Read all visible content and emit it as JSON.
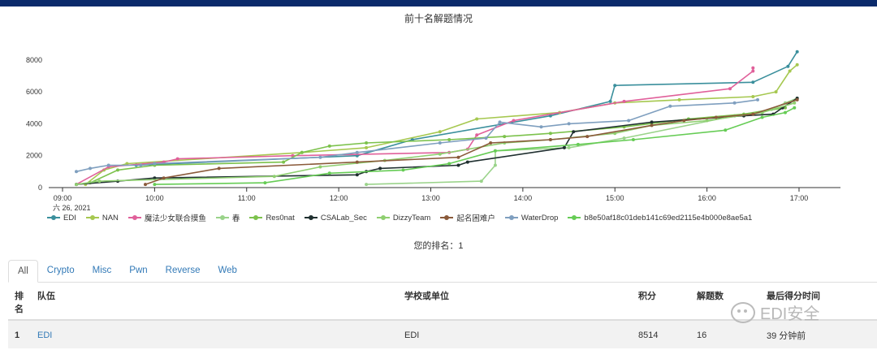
{
  "chart_data": {
    "type": "line",
    "title": "前十名解题情况",
    "xlabel": "",
    "ylabel": "",
    "x_tick_labels": [
      "09:00",
      "10:00",
      "11:00",
      "12:00",
      "13:00",
      "14:00",
      "15:00",
      "16:00",
      "17:00"
    ],
    "x_tick_sublabel": "六 26, 2021",
    "xlim": [
      8.85,
      17.45
    ],
    "y_tick_labels": [
      "0",
      "2000",
      "4000",
      "6000",
      "8000"
    ],
    "ylim": [
      0,
      8600
    ],
    "grid": false,
    "legend_position": "bottom",
    "series": [
      {
        "name": "EDI",
        "color": "#3a8f9c",
        "points": [
          [
            9.8,
            1400
          ],
          [
            12.2,
            2000
          ],
          [
            12.8,
            3000
          ],
          [
            14.3,
            4500
          ],
          [
            14.95,
            5400
          ],
          [
            15.0,
            6400
          ],
          [
            16.5,
            6600
          ],
          [
            16.88,
            7600
          ],
          [
            16.98,
            8514
          ]
        ]
      },
      {
        "name": "NAN",
        "color": "#a6c850",
        "points": [
          [
            9.25,
            200
          ],
          [
            9.45,
            1100
          ],
          [
            9.7,
            1500
          ],
          [
            11.6,
            2200
          ],
          [
            12.3,
            2500
          ],
          [
            13.1,
            3500
          ],
          [
            13.5,
            4300
          ],
          [
            14.4,
            4700
          ],
          [
            15.0,
            5300
          ],
          [
            15.7,
            5500
          ],
          [
            16.5,
            5700
          ],
          [
            16.75,
            6000
          ],
          [
            16.9,
            7300
          ],
          [
            16.98,
            7700
          ]
        ]
      },
      {
        "name": "魔法少女联合摸鱼",
        "color": "#e0609a",
        "points": [
          [
            9.15,
            200
          ],
          [
            9.5,
            1300
          ],
          [
            10.1,
            1600
          ],
          [
            10.25,
            1800
          ],
          [
            11.5,
            2000
          ],
          [
            13.2,
            2200
          ],
          [
            13.4,
            2400
          ],
          [
            13.5,
            3300
          ],
          [
            13.9,
            4200
          ],
          [
            15.1,
            5400
          ],
          [
            16.25,
            6200
          ],
          [
            16.5,
            7300
          ],
          [
            16.5,
            7500
          ]
        ]
      },
      {
        "name": "春",
        "color": "#9ad38a",
        "points": [
          [
            12.3,
            200
          ],
          [
            13.55,
            400
          ],
          [
            13.7,
            1400
          ],
          [
            13.7,
            2300
          ],
          [
            14.5,
            2500
          ],
          [
            15.1,
            3100
          ],
          [
            16.3,
            4500
          ],
          [
            16.7,
            4900
          ],
          [
            16.85,
            5300
          ],
          [
            16.98,
            5600
          ]
        ]
      },
      {
        "name": "Res0nat",
        "color": "#7cc24c",
        "points": [
          [
            9.3,
            300
          ],
          [
            9.6,
            1100
          ],
          [
            10.0,
            1400
          ],
          [
            11.4,
            1600
          ],
          [
            11.6,
            2200
          ],
          [
            11.9,
            2600
          ],
          [
            12.3,
            2800
          ],
          [
            13.2,
            3000
          ],
          [
            13.8,
            3200
          ],
          [
            14.3,
            3400
          ],
          [
            15.1,
            3800
          ],
          [
            15.8,
            4300
          ],
          [
            16.4,
            4600
          ],
          [
            16.85,
            5000
          ]
        ]
      },
      {
        "name": "CSALab_Sec",
        "color": "#1f2f2f",
        "points": [
          [
            9.15,
            200
          ],
          [
            9.6,
            400
          ],
          [
            10.0,
            600
          ],
          [
            12.2,
            800
          ],
          [
            12.3,
            1000
          ],
          [
            12.45,
            1200
          ],
          [
            13.3,
            1400
          ],
          [
            13.4,
            1600
          ],
          [
            14.45,
            2500
          ],
          [
            14.55,
            3500
          ],
          [
            15.4,
            4100
          ],
          [
            16.4,
            4500
          ],
          [
            16.72,
            4600
          ],
          [
            16.82,
            5000
          ],
          [
            16.98,
            5600
          ]
        ]
      },
      {
        "name": "DizzyTeam",
        "color": "#8fcf70",
        "points": [
          [
            9.15,
            200
          ],
          [
            9.4,
            400
          ],
          [
            11.3,
            700
          ],
          [
            11.8,
            1300
          ],
          [
            12.5,
            1700
          ],
          [
            13.1,
            2100
          ],
          [
            13.8,
            2800
          ],
          [
            14.3,
            3000
          ],
          [
            15.0,
            3400
          ],
          [
            15.4,
            3900
          ],
          [
            16.0,
            4200
          ],
          [
            16.6,
            4700
          ],
          [
            16.95,
            5300
          ]
        ]
      },
      {
        "name": "起名困难户",
        "color": "#8a5a3a",
        "points": [
          [
            9.9,
            200
          ],
          [
            10.1,
            600
          ],
          [
            10.7,
            1200
          ],
          [
            12.2,
            1600
          ],
          [
            13.3,
            1900
          ],
          [
            13.65,
            2800
          ],
          [
            14.3,
            3000
          ],
          [
            14.7,
            3200
          ],
          [
            15.4,
            3900
          ],
          [
            15.75,
            4200
          ],
          [
            16.1,
            4400
          ],
          [
            16.5,
            4600
          ],
          [
            16.98,
            5500
          ]
        ]
      },
      {
        "name": "WaterDrop",
        "color": "#7f9fbf",
        "points": [
          [
            9.15,
            1000
          ],
          [
            9.3,
            1200
          ],
          [
            9.5,
            1400
          ],
          [
            9.85,
            1400
          ],
          [
            10.0,
            1500
          ],
          [
            11.8,
            1900
          ],
          [
            12.2,
            2200
          ],
          [
            13.1,
            2800
          ],
          [
            13.6,
            3100
          ],
          [
            13.75,
            4100
          ],
          [
            14.2,
            3800
          ],
          [
            14.5,
            4000
          ],
          [
            15.15,
            4200
          ],
          [
            15.6,
            5100
          ],
          [
            16.3,
            5300
          ],
          [
            16.55,
            5500
          ]
        ]
      },
      {
        "name": "b8e50af18c01deb141c69ed2115e4b000e8ae5a1",
        "color": "#66cc55",
        "points": [
          [
            10.0,
            200
          ],
          [
            11.2,
            300
          ],
          [
            11.9,
            900
          ],
          [
            12.7,
            1100
          ],
          [
            13.2,
            1500
          ],
          [
            13.7,
            2300
          ],
          [
            14.6,
            2700
          ],
          [
            15.2,
            3000
          ],
          [
            16.2,
            3600
          ],
          [
            16.6,
            4400
          ],
          [
            16.85,
            4700
          ],
          [
            16.95,
            5000
          ]
        ]
      }
    ]
  },
  "rank_text": "您的排名：1",
  "tabs": [
    "All",
    "Crypto",
    "Misc",
    "Pwn",
    "Reverse",
    "Web"
  ],
  "table": {
    "headers": {
      "rank": "排名",
      "team": "队伍",
      "school": "学校或单位",
      "score": "积分",
      "solved": "解题数",
      "last": "最后得分时间"
    },
    "rows": [
      {
        "rank": "1",
        "team": "EDI",
        "school": "EDI",
        "score": "8514",
        "solved": "16",
        "last": "39 分钟前"
      }
    ]
  },
  "watermark": "EDI安全"
}
